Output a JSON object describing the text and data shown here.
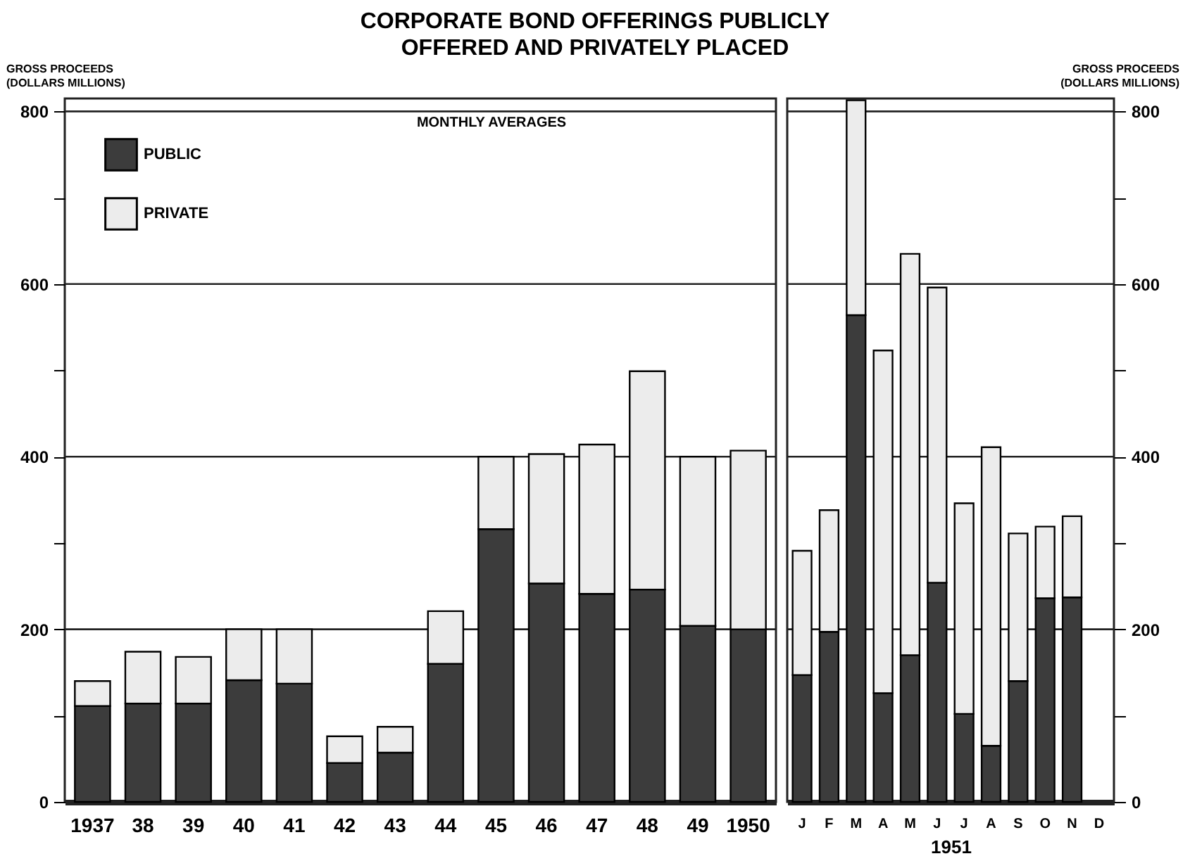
{
  "chart_data": [
    {
      "type": "bar",
      "title": "CORPORATE BOND OFFERINGS PUBLICLY OFFERED AND PRIVATELY PLACED",
      "ylabel": "GROSS PROCEEDS (DOLLARS MILLIONS)",
      "annotations": [
        "MONTHLY AVERAGES"
      ],
      "categories": [
        "1937",
        "38",
        "39",
        "40",
        "41",
        "42",
        "43",
        "44",
        "45",
        "46",
        "47",
        "48",
        "49",
        "1950"
      ],
      "stacked": true,
      "legend": "top left",
      "grid": "y",
      "ylim": [
        0,
        815
      ],
      "yticks": [
        0,
        {
          "value": 100,
          "label": null
        },
        200,
        {
          "value": 300,
          "label": null
        },
        400,
        {
          "value": 500,
          "label": null
        },
        600,
        {
          "value": 700,
          "label": null
        },
        800
      ],
      "series": [
        {
          "name": "PUBLIC",
          "color": "#3c3c3c",
          "values": [
            111,
            114,
            114,
            141,
            137,
            45,
            57,
            160,
            316,
            253,
            241,
            246,
            204,
            200
          ]
        },
        {
          "name": "PRIVATE",
          "color": "#ececec",
          "values": [
            29,
            60,
            54,
            59,
            63,
            31,
            30,
            61,
            84,
            150,
            173,
            253,
            196,
            207
          ]
        }
      ]
    },
    {
      "type": "bar",
      "xlabel": "1951",
      "y2label": "GROSS PROCEEDS (DOLLARS MILLIONS)",
      "categories": [
        "J",
        "F",
        "M",
        "A",
        "M",
        "J",
        "J",
        "A",
        "S",
        "O",
        "N",
        "D"
      ],
      "stacked": true,
      "grid": "y",
      "y2lim": [
        0,
        815
      ],
      "y2ticks": [
        0,
        {
          "value": 100,
          "label": null
        },
        200,
        {
          "value": 300,
          "label": null
        },
        400,
        {
          "value": 500,
          "label": null
        },
        600,
        {
          "value": 700,
          "label": null
        },
        800
      ],
      "series": [
        {
          "color": "#3c3c3c",
          "axis": "y2",
          "values": [
            147,
            197,
            564,
            126,
            170,
            254,
            102,
            65,
            140,
            236,
            237,
            null
          ]
        },
        {
          "color": "#ececec",
          "axis": "y2",
          "values": [
            144,
            141,
            249,
            397,
            465,
            342,
            244,
            346,
            171,
            83,
            94,
            null
          ]
        }
      ]
    }
  ]
}
